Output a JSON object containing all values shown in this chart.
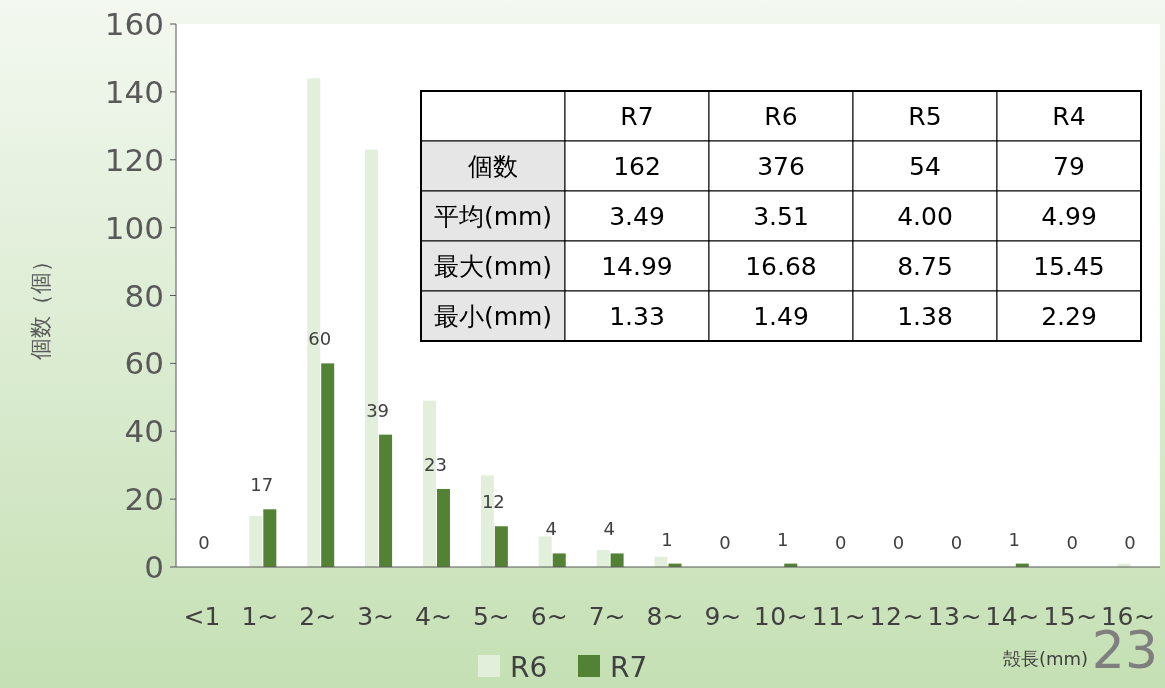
{
  "chart_data": [
    {
      "type": "bar",
      "xlabel": "殻長(mm)",
      "ylabel": "個数（個）",
      "categories": [
        "<1",
        "1~",
        "2~",
        "3~",
        "4~",
        "5~",
        "6~",
        "7~",
        "8~",
        "9~",
        "10~",
        "11~",
        "12~",
        "13~",
        "14~",
        "15~",
        "16~"
      ],
      "series": [
        {
          "name": "R6",
          "color": "#e2efda",
          "values": [
            0,
            15,
            144,
            123,
            49,
            27,
            9,
            5,
            3,
            0,
            0,
            0,
            0,
            0,
            0,
            0,
            1
          ]
        },
        {
          "name": "R7",
          "color": "#548235",
          "values": [
            0,
            17,
            60,
            39,
            23,
            12,
            4,
            4,
            1,
            0,
            1,
            0,
            0,
            0,
            1,
            0,
            0
          ],
          "value_labels": [
            "0",
            "17",
            "60",
            "39",
            "23",
            "12",
            "4",
            "4",
            "1",
            "0",
            "1",
            "0",
            "0",
            "0",
            "1",
            "0",
            "0"
          ]
        }
      ],
      "ylim": [
        0,
        160
      ],
      "yticks": [
        0,
        20,
        40,
        60,
        80,
        100,
        120,
        140,
        160
      ],
      "grid": false,
      "legend": "bottom",
      "annotations": [
        "23"
      ]
    },
    {
      "type": "other",
      "categories": [
        null,
        "R7",
        "R6",
        "R5",
        "R4"
      ],
      "y_categories": [
        "個数",
        "平均(mm)",
        "最大(mm)",
        "最小(mm)"
      ],
      "cell_labels": [
        [
          "162",
          "376",
          "54",
          "79"
        ],
        [
          "3.49",
          "3.51",
          "4.00",
          "4.99"
        ],
        [
          "14.99",
          "16.68",
          "8.75",
          "15.45"
        ],
        [
          "1.33",
          "1.49",
          "1.38",
          "2.29"
        ]
      ]
    }
  ]
}
